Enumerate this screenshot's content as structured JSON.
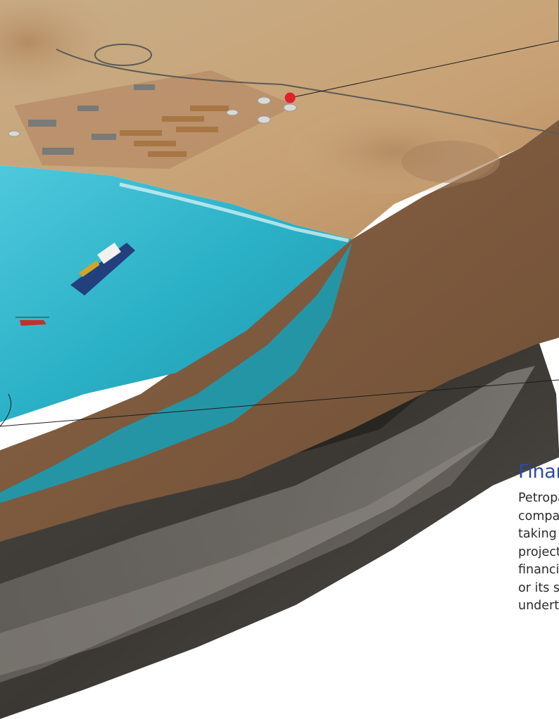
{
  "section": {
    "heading": "Finan",
    "body_lines": [
      "Petropa",
      "compar",
      "taking r",
      "projects",
      "financin",
      "or its so",
      "underta"
    ]
  },
  "illustration": {
    "subject": "cutaway-terrain-block",
    "callouts": [
      "plant-storage-tanks",
      "subsea-layer"
    ],
    "marker_color": "#e0202a",
    "sea_color": "#2bb6c9",
    "sand_color": "#c9a57a",
    "soil_color": "#7e5a3c",
    "rock_color": "#3f3d3a"
  }
}
